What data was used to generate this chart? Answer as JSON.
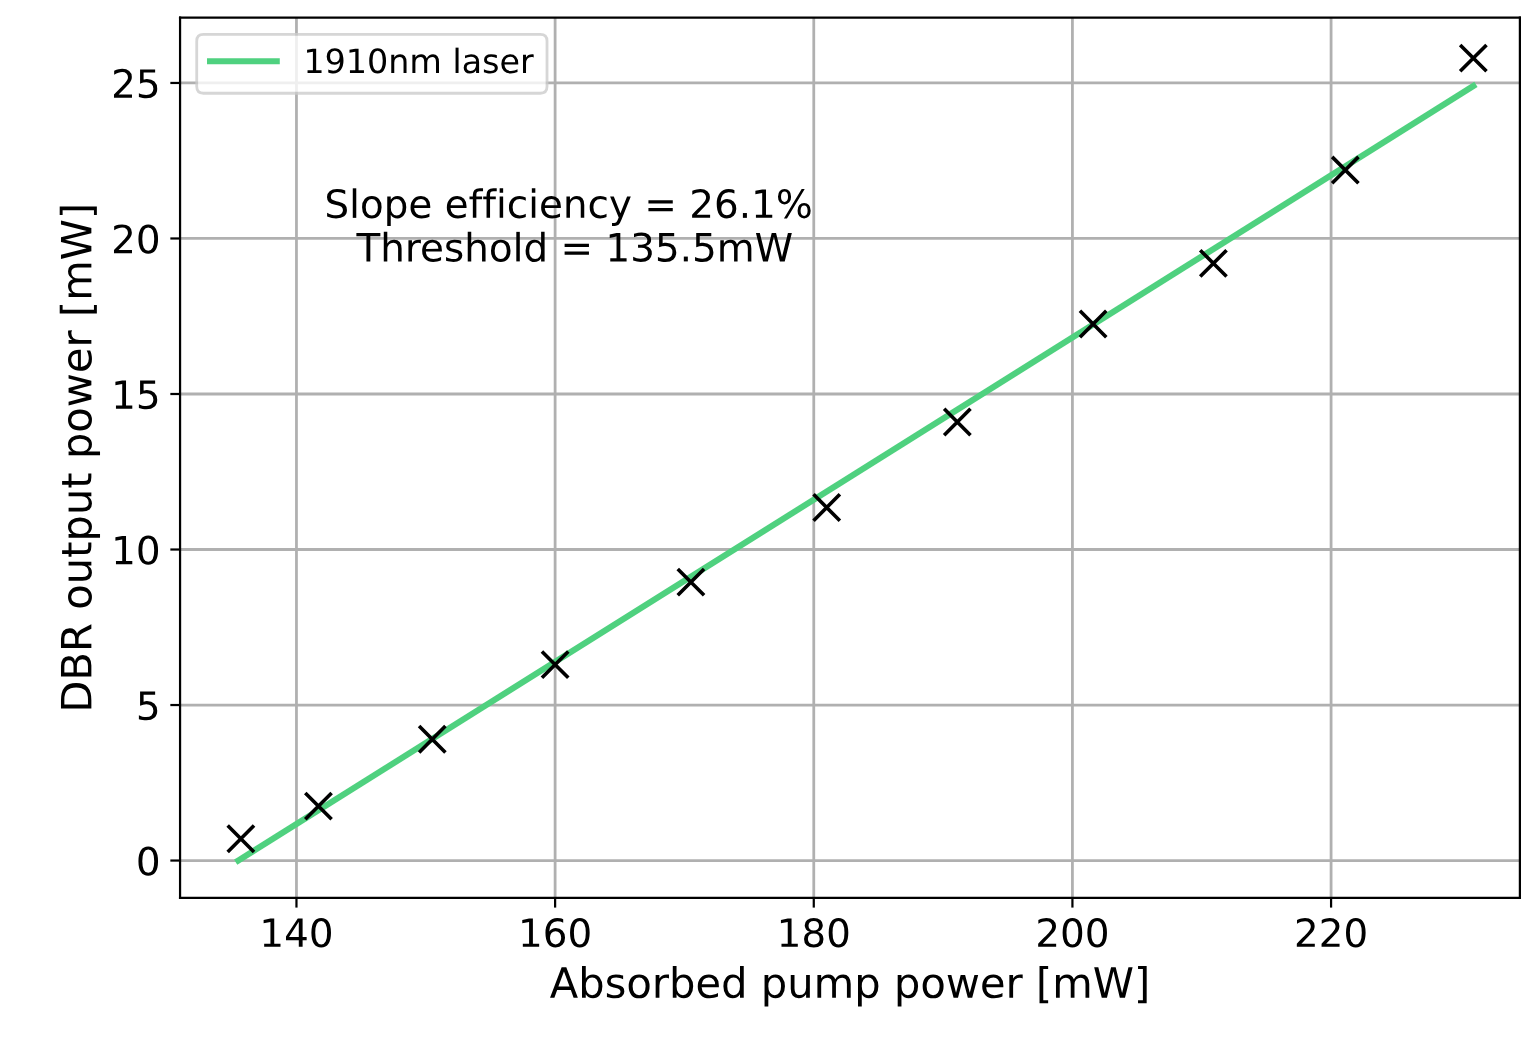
{
  "chart_data": {
    "type": "scatter",
    "xlabel": "Absorbed pump power [mW]",
    "ylabel": "DBR output power [mW]",
    "series": [
      {
        "color": "#000000",
        "marker": "cross",
        "x": [
          135.7,
          141.7,
          150.5,
          160.0,
          170.5,
          181.0,
          191.1,
          201.6,
          210.9,
          221.1,
          231.0
        ],
        "values": [
          0.7,
          1.75,
          3.9,
          6.3,
          8.95,
          11.35,
          14.1,
          17.25,
          19.2,
          22.2,
          25.8
        ]
      },
      {
        "type": "line",
        "name": "1910nm laser",
        "color": "#4fd17f",
        "x": [
          135.5,
          231.0
        ],
        "values": [
          0,
          24.9
        ]
      }
    ],
    "annotations": [
      "Slope efficiency = 26.1%\n Threshold = 135.5mW"
    ],
    "xlim": [
      131,
      234.6
    ],
    "ylim": [
      -1.2,
      27.1
    ],
    "xticks": [
      140,
      160,
      180,
      200,
      220
    ],
    "yticks": [
      0,
      5,
      10,
      15,
      20,
      25
    ],
    "grid": true,
    "legend": "top left"
  }
}
